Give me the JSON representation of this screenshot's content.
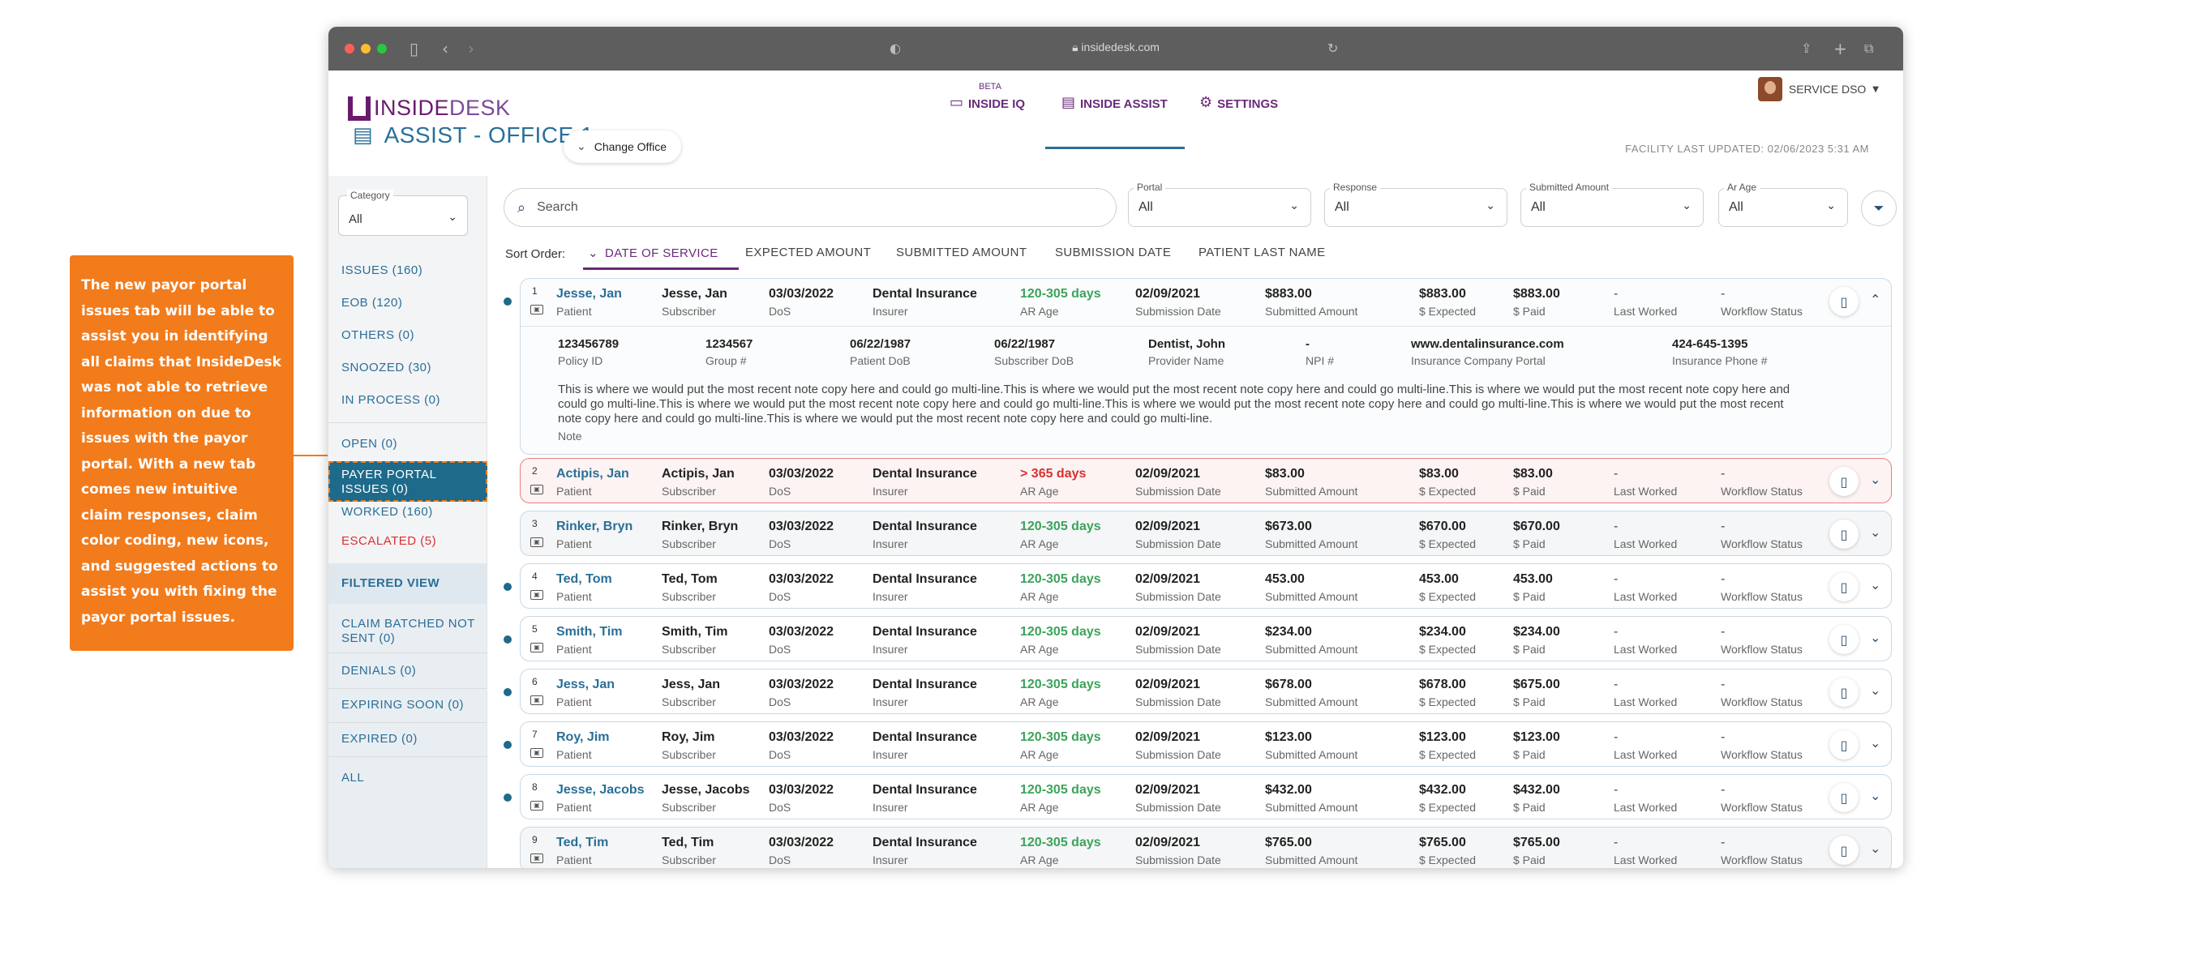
{
  "callout": {
    "text": "The new payor portal issues tab will be able to assist you in identifying all claims that InsideDesk was not able to retrieve information on due to issues with the payor portal. With a new tab comes new intuitive claim responses, claim color coding, new icons, and suggested actions to assist you with fixing the payor portal issues."
  },
  "browser": {
    "url": "insidedesk.com"
  },
  "app": {
    "logo_inside": "INSIDE",
    "logo_desk": "DESK",
    "nav": {
      "beta": "BETA",
      "inside_iq": "INSIDE IQ",
      "inside_assist": "INSIDE ASSIST",
      "settings": "SETTINGS"
    },
    "user": "SERVICE DSO",
    "title": "ASSIST - OFFICE 1",
    "change_office": "Change Office",
    "facility_updated": "FACILITY LAST UPDATED: 02/06/2023 5:31 AM"
  },
  "sidebar": {
    "category_label": "Category",
    "category_value": "All",
    "items": [
      "ISSUES (160)",
      "EOB (120)",
      "OTHERS (0)",
      "SNOOZED (30)",
      "IN PROCESS (0)",
      "OPEN (0)",
      "PAYER PORTAL ISSUES (0)",
      "WORKED (160)",
      "ESCALATED (5)"
    ],
    "filtered_view": "FILTERED VIEW",
    "filtered_items": [
      "CLAIM BATCHED NOT SENT (0)",
      "DENIALS (0)",
      "EXPIRING SOON (0)",
      "EXPIRED (0)",
      "ALL"
    ]
  },
  "search": {
    "placeholder": "Search"
  },
  "filters": [
    {
      "label": "Portal",
      "value": "All"
    },
    {
      "label": "Response",
      "value": "All"
    },
    {
      "label": "Submitted Amount",
      "value": "All"
    },
    {
      "label": "Ar Age",
      "value": "All"
    }
  ],
  "sort": {
    "label": "Sort Order:",
    "options": [
      "DATE OF SERVICE",
      "EXPECTED AMOUNT",
      "SUBMITTED AMOUNT",
      "SUBMISSION DATE",
      "PATIENT LAST NAME"
    ]
  },
  "column_labels": {
    "patient": "Patient",
    "subscriber": "Subscriber",
    "dos": "DoS",
    "insurer": "Insurer",
    "ar_age": "AR Age",
    "submission_date": "Submission Date",
    "submitted_amount": "Submitted Amount",
    "expected": "$ Expected",
    "paid": "$ Paid",
    "last_worked": "Last Worked",
    "workflow_status": "Workflow Status"
  },
  "claims": [
    {
      "num": "1",
      "patient": "Jesse, Jan",
      "subscriber": "Jesse, Jan",
      "dos": "03/03/2022",
      "insurer": "Dental Insurance",
      "ar_age": "120-305 days",
      "submission_date": "02/09/2021",
      "submitted": "$883.00",
      "expected": "$883.00",
      "paid": "$883.00",
      "last_worked": "-",
      "workflow": "-"
    },
    {
      "num": "2",
      "patient": "Actipis, Jan",
      "subscriber": "Actipis, Jan",
      "dos": "03/03/2022",
      "insurer": "Dental Insurance",
      "ar_age": "> 365 days",
      "submission_date": "02/09/2021",
      "submitted": "$83.00",
      "expected": "$83.00",
      "paid": "$83.00",
      "last_worked": "-",
      "workflow": "-"
    },
    {
      "num": "3",
      "patient": "Rinker, Bryn",
      "subscriber": "Rinker, Bryn",
      "dos": "03/03/2022",
      "insurer": "Dental Insurance",
      "ar_age": "120-305 days",
      "submission_date": "02/09/2021",
      "submitted": "$673.00",
      "expected": "$670.00",
      "paid": "$670.00",
      "last_worked": "-",
      "workflow": "-"
    },
    {
      "num": "4",
      "patient": "Ted, Tom",
      "subscriber": "Ted, Tom",
      "dos": "03/03/2022",
      "insurer": "Dental Insurance",
      "ar_age": "120-305 days",
      "submission_date": "02/09/2021",
      "submitted": "453.00",
      "expected": "453.00",
      "paid": "453.00",
      "last_worked": "-",
      "workflow": "-"
    },
    {
      "num": "5",
      "patient": "Smith, Tim",
      "subscriber": "Smith, Tim",
      "dos": "03/03/2022",
      "insurer": "Dental Insurance",
      "ar_age": "120-305 days",
      "submission_date": "02/09/2021",
      "submitted": "$234.00",
      "expected": "$234.00",
      "paid": "$234.00",
      "last_worked": "-",
      "workflow": "-"
    },
    {
      "num": "6",
      "patient": "Jess, Jan",
      "subscriber": "Jess, Jan",
      "dos": "03/03/2022",
      "insurer": "Dental Insurance",
      "ar_age": "120-305 days",
      "submission_date": "02/09/2021",
      "submitted": "$678.00",
      "expected": "$678.00",
      "paid": "$675.00",
      "last_worked": "-",
      "workflow": "-"
    },
    {
      "num": "7",
      "patient": "Roy, Jim",
      "subscriber": "Roy, Jim",
      "dos": "03/03/2022",
      "insurer": "Dental Insurance",
      "ar_age": "120-305 days",
      "submission_date": "02/09/2021",
      "submitted": "$123.00",
      "expected": "$123.00",
      "paid": "$123.00",
      "last_worked": "-",
      "workflow": "-"
    },
    {
      "num": "8",
      "patient": "Jesse, Jacobs",
      "subscriber": "Jesse, Jacobs",
      "dos": "03/03/2022",
      "insurer": "Dental Insurance",
      "ar_age": "120-305 days",
      "submission_date": "02/09/2021",
      "submitted": "$432.00",
      "expected": "$432.00",
      "paid": "$432.00",
      "last_worked": "-",
      "workflow": "-"
    },
    {
      "num": "9",
      "patient": "Ted, Tim",
      "subscriber": "Ted, Tim",
      "dos": "03/03/2022",
      "insurer": "Dental Insurance",
      "ar_age": "120-305 days",
      "submission_date": "02/09/2021",
      "submitted": "$765.00",
      "expected": "$765.00",
      "paid": "$765.00",
      "last_worked": "-",
      "workflow": "-"
    }
  ],
  "expanded": {
    "policy_id": "123456789",
    "policy_id_label": "Policy ID",
    "group": "1234567",
    "group_label": "Group #",
    "patient_dob": "06/22/1987",
    "patient_dob_label": "Patient DoB",
    "subscriber_dob": "06/22/1987",
    "subscriber_dob_label": "Subscriber DoB",
    "provider": "Dentist, John",
    "provider_label": "Provider Name",
    "npi": "-",
    "npi_label": "NPI #",
    "portal": "www.dentalinsurance.com",
    "portal_label": "Insurance Company Portal",
    "phone": "424-645-1395",
    "phone_label": "Insurance Phone #",
    "note": "This is where we would put the most recent note copy here and could go multi-line.This is where we would put the most recent note copy here and could go multi-line.This is where we would put the most recent note copy here and could go multi-line.This is where we would put the most recent note copy here and could go multi-line.This is where we would put the most recent note copy here and could go multi-line.This is where we would put the most recent note copy here and could go multi-line.This is where we would put the most recent note copy here and could go multi-line.",
    "note_label": "Note"
  }
}
